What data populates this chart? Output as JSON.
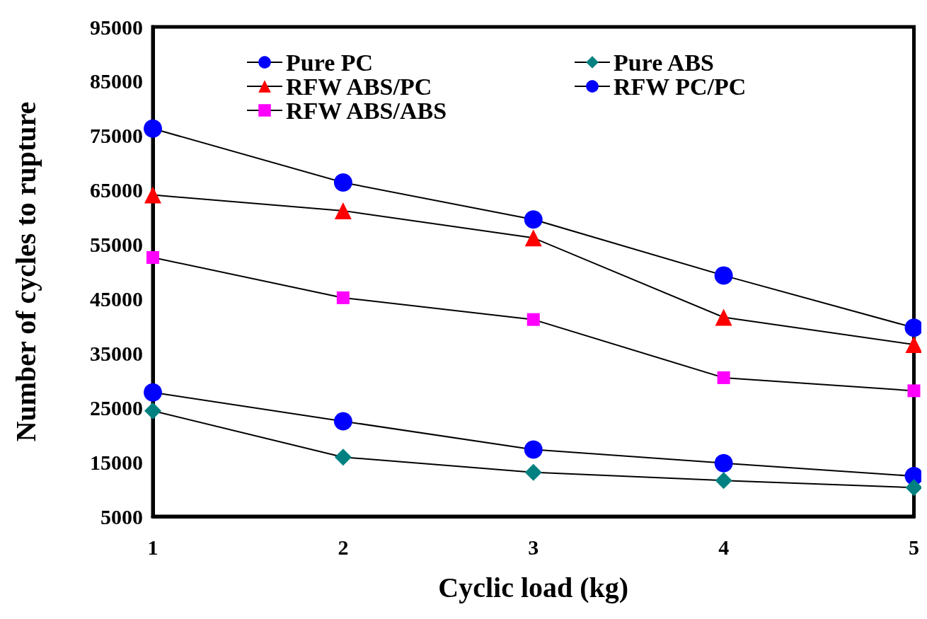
{
  "chart_data": {
    "type": "line",
    "xlabel": "Cyclic load (kg)",
    "ylabel": "Number of cycles to rupture",
    "x": [
      1,
      2,
      3,
      4,
      5
    ],
    "xlim": [
      1,
      5
    ],
    "xticks": [
      1,
      2,
      3,
      4,
      5
    ],
    "ylim": [
      5000,
      95000
    ],
    "yticks": [
      5000,
      15000,
      25000,
      35000,
      45000,
      55000,
      65000,
      75000,
      85000,
      95000
    ],
    "grid": false,
    "legend": "top",
    "line_style": "solid",
    "series": [
      {
        "name": "Pure PC",
        "color": "#0000ff",
        "marker": "circle",
        "values": [
          27800,
          22500,
          17300,
          14800,
          12400
        ]
      },
      {
        "name": "Pure ABS",
        "color": "#008080",
        "marker": "diamond",
        "values": [
          24400,
          15900,
          13100,
          11600,
          10300
        ]
      },
      {
        "name": "RFW ABS/PC",
        "color": "#ff0000",
        "marker": "triangle",
        "values": [
          64100,
          61200,
          56200,
          41600,
          36600
        ]
      },
      {
        "name": "RFW PC/PC",
        "color": "#0000ff",
        "marker": "circle",
        "values": [
          76300,
          66400,
          59600,
          49300,
          39700
        ]
      },
      {
        "name": "RFW ABS/ABS",
        "color": "#ff00ff",
        "marker": "square",
        "values": [
          52600,
          45200,
          41200,
          30500,
          28100
        ]
      }
    ]
  }
}
